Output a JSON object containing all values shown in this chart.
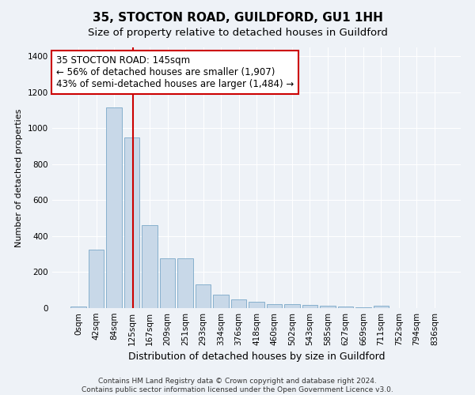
{
  "title": "35, STOCTON ROAD, GUILDFORD, GU1 1HH",
  "subtitle": "Size of property relative to detached houses in Guildford",
  "xlabel": "Distribution of detached houses by size in Guildford",
  "ylabel": "Number of detached properties",
  "bin_labels": [
    "0sqm",
    "42sqm",
    "84sqm",
    "125sqm",
    "167sqm",
    "209sqm",
    "251sqm",
    "293sqm",
    "334sqm",
    "376sqm",
    "418sqm",
    "460sqm",
    "502sqm",
    "543sqm",
    "585sqm",
    "627sqm",
    "669sqm",
    "711sqm",
    "752sqm",
    "794sqm",
    "836sqm"
  ],
  "bar_values": [
    10,
    325,
    1115,
    950,
    460,
    275,
    275,
    130,
    75,
    48,
    35,
    20,
    20,
    18,
    12,
    8,
    5,
    15,
    0,
    0,
    0
  ],
  "bar_color": "#c8d8e8",
  "bar_edge_color": "#7aa8c8",
  "bar_width": 0.85,
  "property_line_x": 3.05,
  "property_line_color": "#cc0000",
  "annotation_text": "35 STOCTON ROAD: 145sqm\n← 56% of detached houses are smaller (1,907)\n43% of semi-detached houses are larger (1,484) →",
  "annotation_box_color": "#ffffff",
  "annotation_box_edge": "#cc0000",
  "ylim": [
    0,
    1450
  ],
  "yticks": [
    0,
    200,
    400,
    600,
    800,
    1000,
    1200,
    1400
  ],
  "bg_color": "#eef2f7",
  "plot_bg_color": "#eef2f7",
  "footer_text": "Contains HM Land Registry data © Crown copyright and database right 2024.\nContains public sector information licensed under the Open Government Licence v3.0.",
  "title_fontsize": 11,
  "subtitle_fontsize": 9.5,
  "xlabel_fontsize": 9,
  "ylabel_fontsize": 8,
  "tick_fontsize": 7.5,
  "annotation_fontsize": 8.5,
  "footer_fontsize": 6.5
}
